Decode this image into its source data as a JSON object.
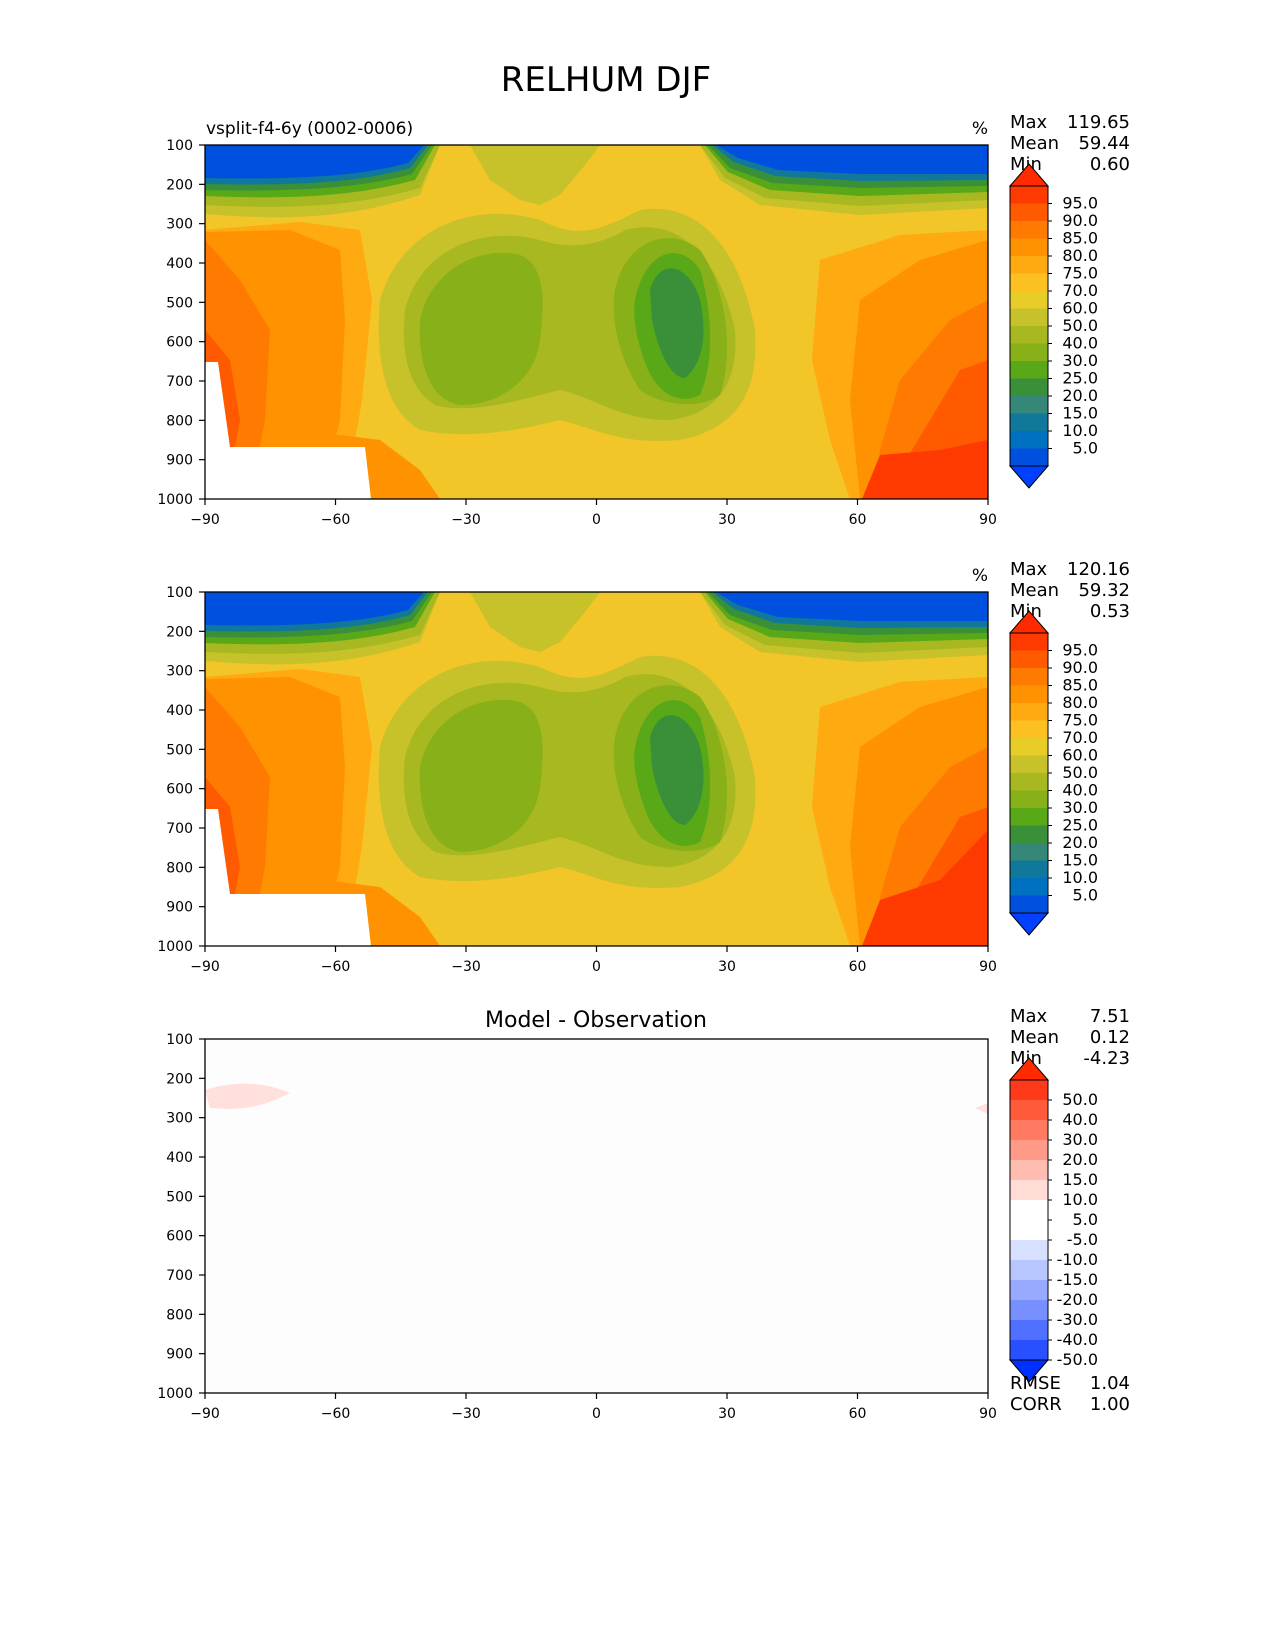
{
  "figure_title": "RELHUM DJF",
  "chart_data": [
    {
      "type": "heatmap",
      "panel_title": "",
      "left_label": "vsplit-f4-6y (0002-0006)",
      "units": "%",
      "stats": [
        {
          "label": "Max",
          "value": "119.65"
        },
        {
          "label": "Mean",
          "value": "59.44"
        },
        {
          "label": "Min",
          "value": "0.60"
        }
      ],
      "x_ticks": [
        "−90",
        "−60",
        "−30",
        "0",
        "30",
        "60",
        "90"
      ],
      "y_ticks": [
        "100",
        "200",
        "300",
        "400",
        "500",
        "600",
        "700",
        "800",
        "900",
        "1000"
      ],
      "xlim": [
        -90,
        90
      ],
      "ylim": [
        1000,
        100
      ],
      "levels": [
        "95.0",
        "90.0",
        "85.0",
        "80.0",
        "75.0",
        "70.0",
        "60.0",
        "50.0",
        "40.0",
        "30.0",
        "25.0",
        "20.0",
        "15.0",
        "10.0",
        "5.0"
      ],
      "colorbar_top": "#ff2a00",
      "colorbar_bottom": "#0040ff",
      "colorbar_colors": [
        "#ff3a00",
        "#ff5a00",
        "#ff7a00",
        "#ff9200",
        "#ffaa10",
        "#fcc020",
        "#e8cc28",
        "#c8c22a",
        "#a8b820",
        "#88b018",
        "#58a818",
        "#3a9038",
        "#358878",
        "#10789a",
        "#0070c0",
        "#0050e0"
      ]
    },
    {
      "type": "heatmap",
      "panel_title": "",
      "left_label": "",
      "units": "%",
      "stats": [
        {
          "label": "Max",
          "value": "120.16"
        },
        {
          "label": "Mean",
          "value": "59.32"
        },
        {
          "label": "Min",
          "value": "0.53"
        }
      ],
      "x_ticks": [
        "−90",
        "−60",
        "−30",
        "0",
        "30",
        "60",
        "90"
      ],
      "y_ticks": [
        "100",
        "200",
        "300",
        "400",
        "500",
        "600",
        "700",
        "800",
        "900",
        "1000"
      ],
      "xlim": [
        -90,
        90
      ],
      "ylim": [
        1000,
        100
      ],
      "levels": [
        "95.0",
        "90.0",
        "85.0",
        "80.0",
        "75.0",
        "70.0",
        "60.0",
        "50.0",
        "40.0",
        "30.0",
        "25.0",
        "20.0",
        "15.0",
        "10.0",
        "5.0"
      ],
      "colorbar_top": "#ff2a00",
      "colorbar_bottom": "#0040ff",
      "colorbar_colors": [
        "#ff3a00",
        "#ff5a00",
        "#ff7a00",
        "#ff9200",
        "#ffaa10",
        "#fcc020",
        "#e8cc28",
        "#c8c22a",
        "#a8b820",
        "#88b018",
        "#58a818",
        "#3a9038",
        "#358878",
        "#10789a",
        "#0070c0",
        "#0050e0"
      ]
    },
    {
      "type": "heatmap",
      "panel_title": "Model - Observation",
      "left_label": "",
      "units": "",
      "stats": [
        {
          "label": "Max",
          "value": "7.51"
        },
        {
          "label": "Mean",
          "value": "0.12"
        },
        {
          "label": "Min",
          "value": "-4.23"
        }
      ],
      "x_ticks": [
        "−90",
        "−60",
        "−30",
        "0",
        "30",
        "60",
        "90"
      ],
      "y_ticks": [
        "100",
        "200",
        "300",
        "400",
        "500",
        "600",
        "700",
        "800",
        "900",
        "1000"
      ],
      "xlim": [
        -90,
        90
      ],
      "ylim": [
        1000,
        100
      ],
      "levels": [
        "50.0",
        "40.0",
        "30.0",
        "20.0",
        "15.0",
        "10.0",
        "5.0",
        "-5.0",
        "-10.0",
        "-15.0",
        "-20.0",
        "-30.0",
        "-40.0",
        "-50.0"
      ],
      "colorbar_top": "#ff2a00",
      "colorbar_bottom": "#0030ff",
      "colorbar_colors": [
        "#ff3a1a",
        "#ff5a3a",
        "#ff7a60",
        "#ff9a88",
        "#ffbcb0",
        "#ffdcd6",
        "#ffffff",
        "#ffffff",
        "#d8e0ff",
        "#b8c6ff",
        "#98aaff",
        "#7890ff",
        "#5070ff",
        "#2850ff"
      ],
      "bottom_stats": [
        {
          "label": "RMSE",
          "value": "1.04"
        },
        {
          "label": "CORR",
          "value": "1.00"
        }
      ]
    }
  ]
}
